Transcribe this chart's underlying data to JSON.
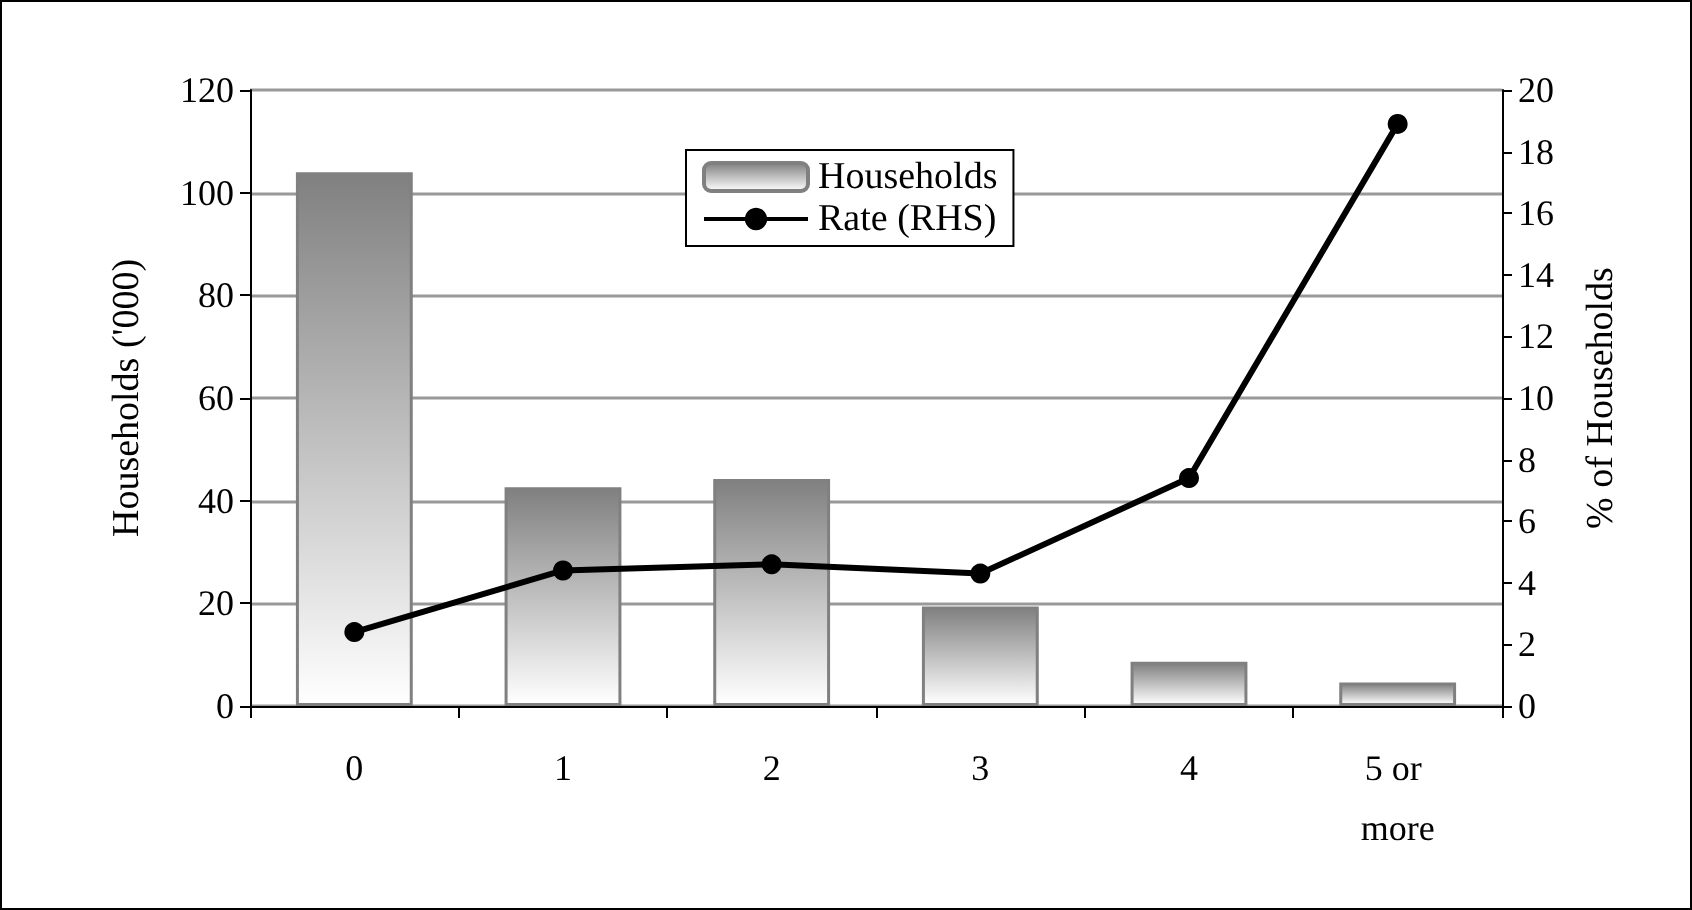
{
  "chart_data": {
    "type": "bar",
    "categories": [
      "0",
      "1",
      "2",
      "3",
      "4",
      "5 or more"
    ],
    "ylabel": "Households ('000)",
    "y2label": "% of Households",
    "series": [
      {
        "name": "Households",
        "color": "#808080",
        "values": [
          104,
          42.6,
          44.2,
          19.4,
          8.6,
          4.6
        ]
      },
      {
        "name": "Rate (RHS)",
        "type": "line",
        "axis": "y2",
        "color": "#000000",
        "marker": "circle",
        "values": [
          2.4,
          4.4,
          4.6,
          4.3,
          7.4,
          18.9
        ]
      }
    ],
    "ylim": [
      0,
      120
    ],
    "yticks": [
      0,
      20,
      40,
      60,
      80,
      100,
      120
    ],
    "y2lim": [
      0,
      20
    ],
    "y2ticks": [
      0,
      2,
      4,
      6,
      8,
      10,
      12,
      14,
      16,
      18,
      20
    ],
    "grid": "y",
    "legend": "top"
  }
}
